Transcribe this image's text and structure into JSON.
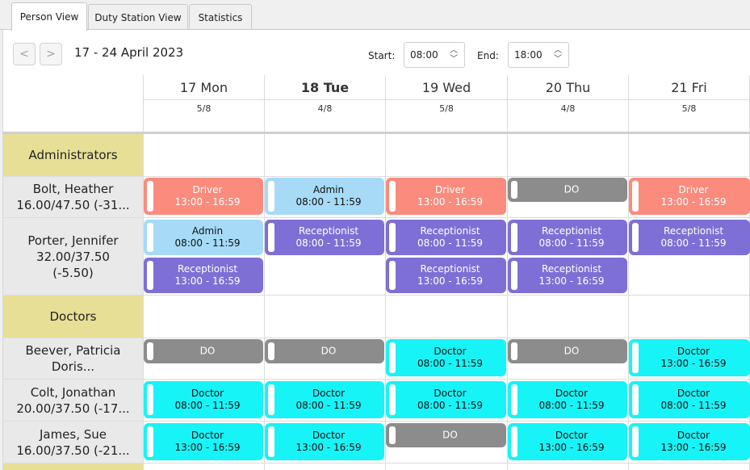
{
  "tabs": [
    "Person View",
    "Duty Station View",
    "Statistics"
  ],
  "toolbar": {
    "prev_icon": "<",
    "next_icon": ">",
    "date_range": "17 - 24 April 2023",
    "start_label": "Start:",
    "start_value": "08:00",
    "end_label": "End:",
    "end_value": "18:00"
  },
  "days": [
    {
      "name": "17 Mon",
      "count": "5/8"
    },
    {
      "name": "18 Tue",
      "count": "4/8"
    },
    {
      "name": "19 Wed",
      "count": "5/8"
    },
    {
      "name": "20 Thu",
      "count": "4/8"
    },
    {
      "name": "21 Fri",
      "count": "5/8"
    }
  ],
  "groups": {
    "administrators": "Administrators",
    "doctors": "Doctors"
  },
  "people": {
    "bolt": {
      "line1": "Bolt, Heather",
      "line2": "16.00/47.50 (-31...",
      "line3": ""
    },
    "porter": {
      "line1": "Porter, Jennifer",
      "line2": "32.00/37.50",
      "line3": "(-5.50)"
    },
    "beever": {
      "line1": "Beever, Patricia",
      "line2": "Doris...",
      "line3": ""
    },
    "colt": {
      "line1": "Colt, Jonathan",
      "line2": "20.00/37.50 (-17...",
      "line3": ""
    },
    "james": {
      "line1": "James, Sue",
      "line2": "16.00/37.50 (-21...",
      "line3": ""
    }
  },
  "colors": {
    "driver": "#fa8b7d",
    "admin": "#a6daf7",
    "receptionist": "#7e6fd6",
    "do": "#8c8c8c",
    "doctor": "#16f4f7",
    "group_bg": "#e7df96",
    "person_bg": "#e9e9e9"
  },
  "shifts": {
    "s1": {
      "role": "Driver",
      "time": "13:00 - 16:59"
    },
    "s2": {
      "role": "Admin",
      "time": "08:00 - 11:59"
    },
    "s3": {
      "role": "Driver",
      "time": "13:00 - 16:59"
    },
    "s4": {
      "role": "DO",
      "time": ""
    },
    "s5": {
      "role": "Driver",
      "time": "13:00 - 16:59"
    },
    "s6": {
      "role": "Admin",
      "time": "08:00 - 11:59"
    },
    "s7": {
      "role": "Receptionist",
      "time": "08:00 - 11:59"
    },
    "s8": {
      "role": "Receptionist",
      "time": "08:00 - 11:59"
    },
    "s9": {
      "role": "Receptionist",
      "time": "08:00 - 11:59"
    },
    "s10": {
      "role": "Receptionist",
      "time": "08:00 - 11:59"
    },
    "s11": {
      "role": "Receptionist",
      "time": "13:00 - 16:59"
    },
    "s12": {
      "role": "Receptionist",
      "time": "13:00 - 16:59"
    },
    "s13": {
      "role": "Receptionist",
      "time": "13:00 - 16:59"
    },
    "s14": {
      "role": "DO",
      "time": ""
    },
    "s15": {
      "role": "DO",
      "time": ""
    },
    "s16": {
      "role": "Doctor",
      "time": "08:00 - 11:59"
    },
    "s17": {
      "role": "DO",
      "time": ""
    },
    "s18": {
      "role": "Doctor",
      "time": "13:00 - 16:59"
    },
    "s19": {
      "role": "Doctor",
      "time": "08:00 - 11:59"
    },
    "s20": {
      "role": "Doctor",
      "time": "08:00 - 11:59"
    },
    "s21": {
      "role": "Doctor",
      "time": "08:00 - 11:59"
    },
    "s22": {
      "role": "Doctor",
      "time": "08:00 - 11:59"
    },
    "s23": {
      "role": "Doctor",
      "time": "08:00 - 11:59"
    },
    "s24": {
      "role": "Doctor",
      "time": "13:00 - 16:59"
    },
    "s25": {
      "role": "Doctor",
      "time": "13:00 - 16:59"
    },
    "s26": {
      "role": "DO",
      "time": ""
    },
    "s27": {
      "role": "Doctor",
      "time": "13:00 - 16:59"
    },
    "s28": {
      "role": "Doctor",
      "time": "13:00 - 16:59"
    }
  }
}
